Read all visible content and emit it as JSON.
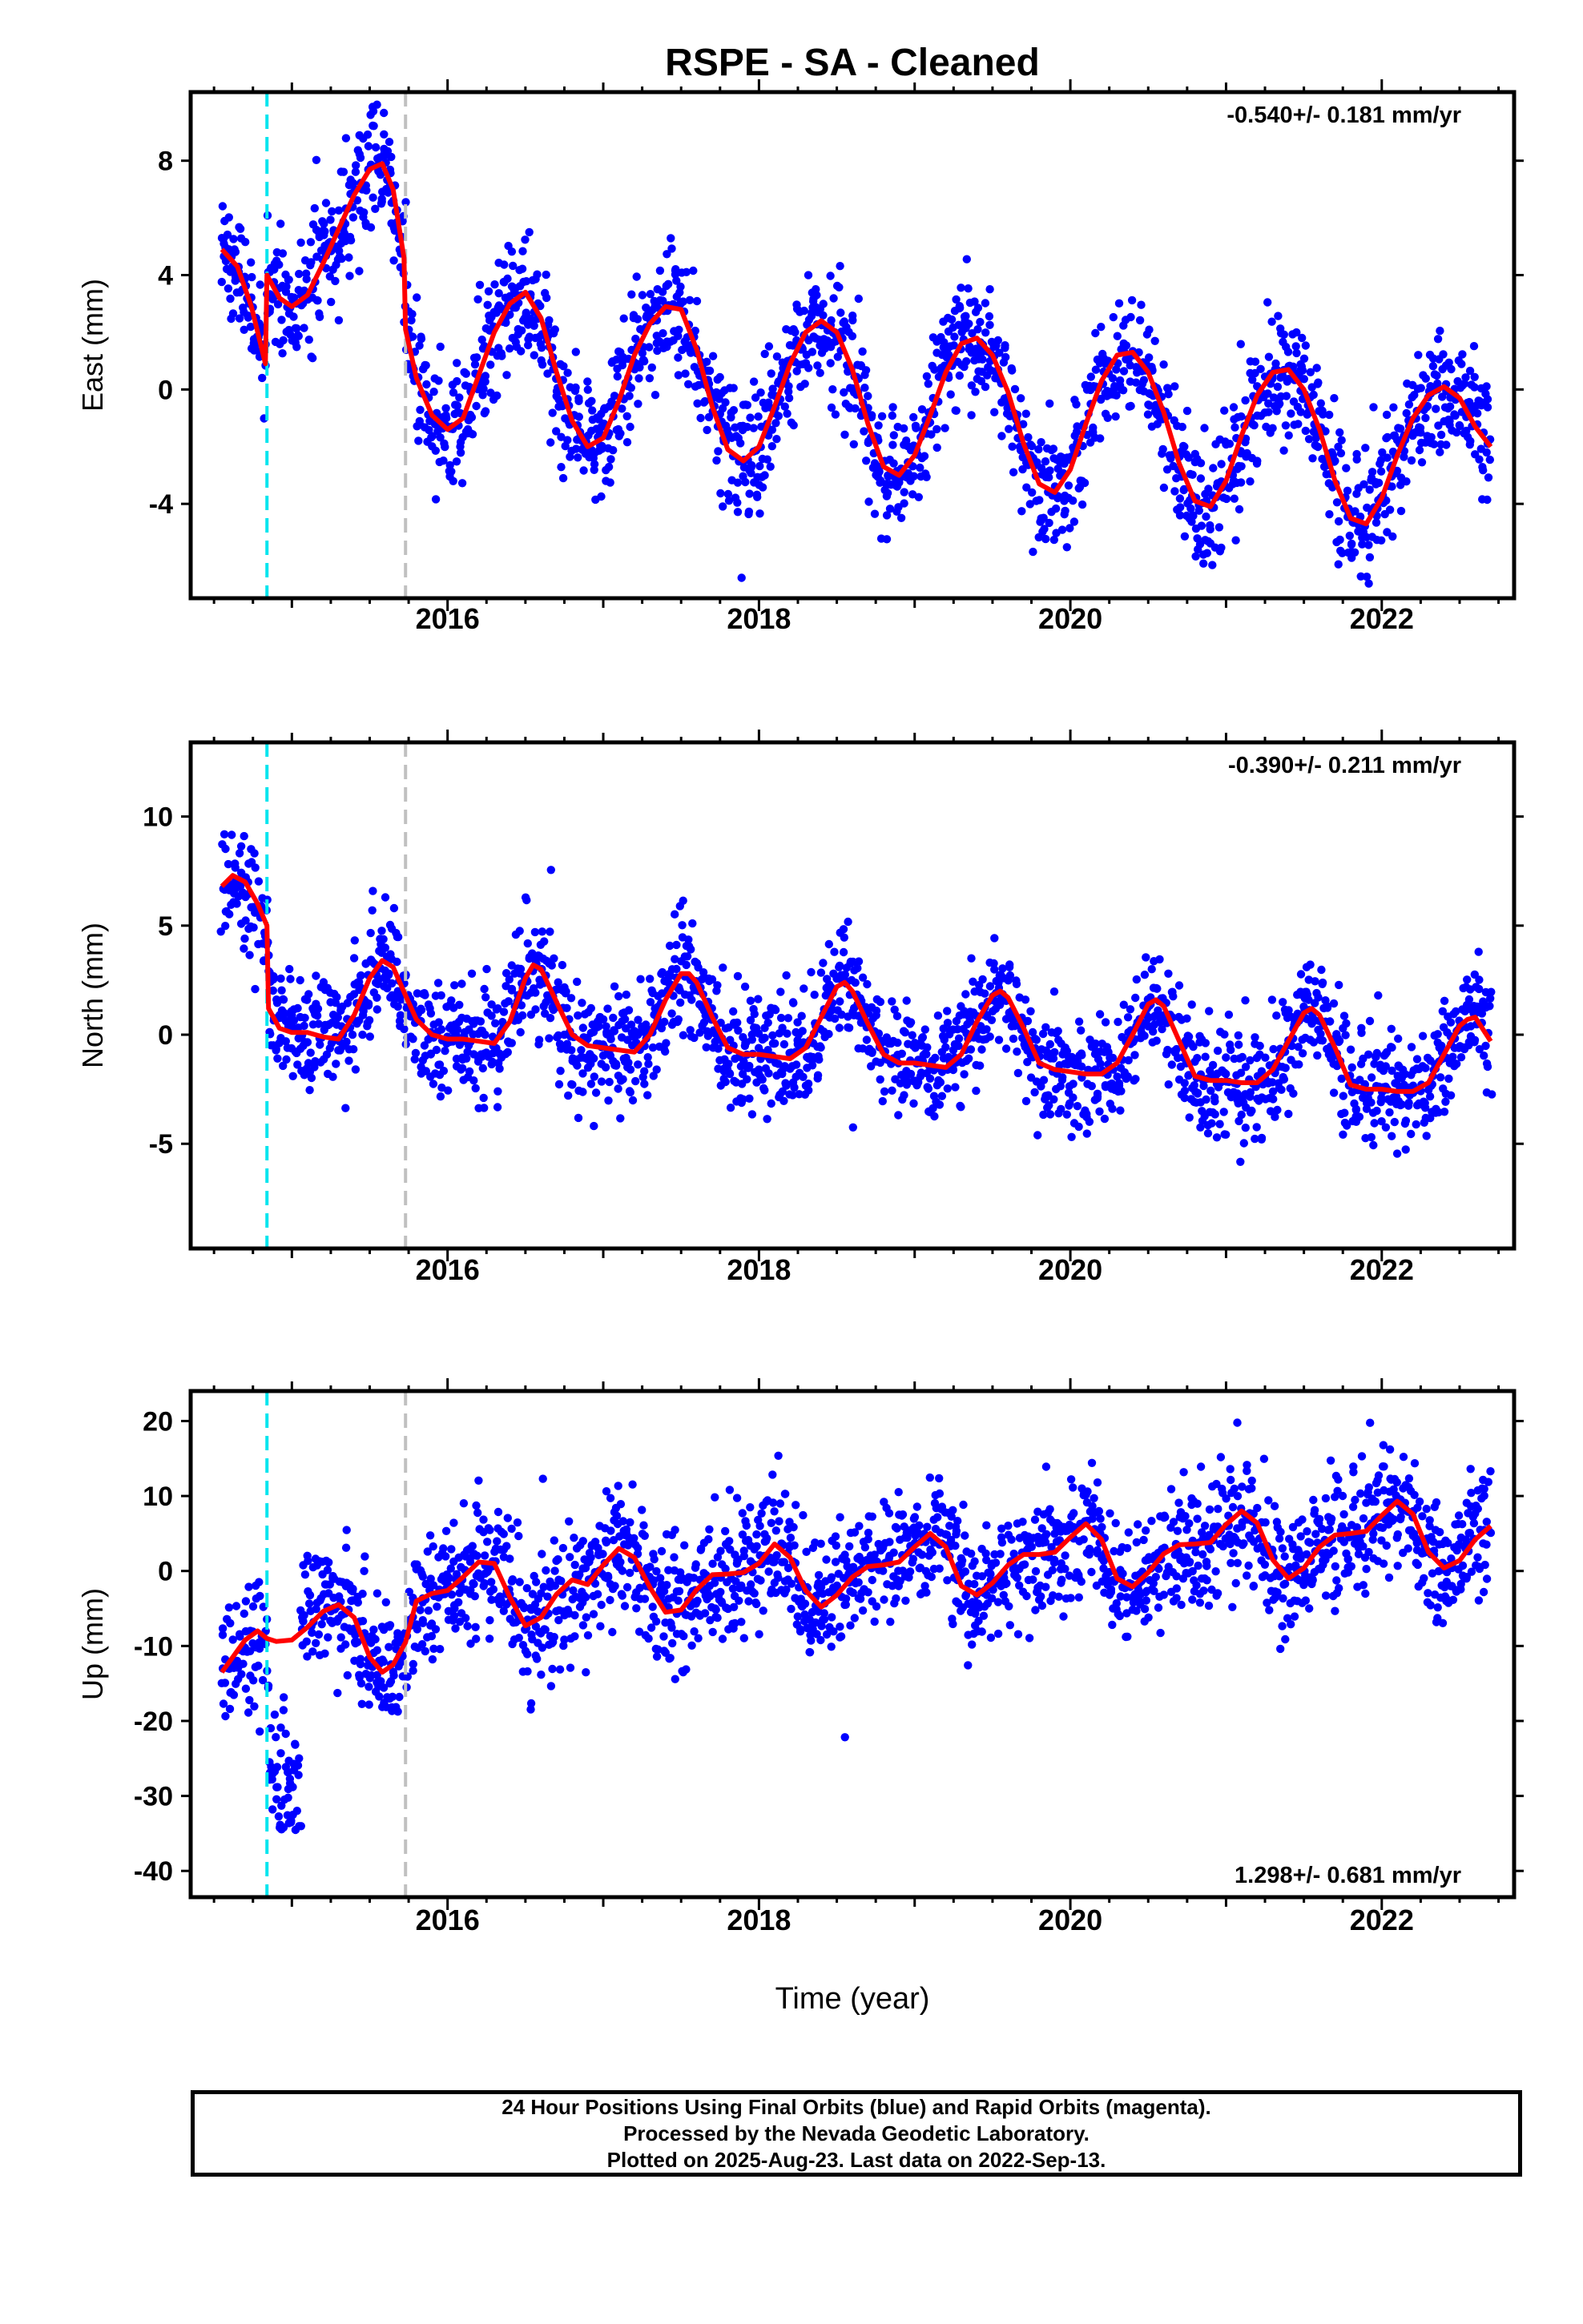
{
  "title": "RSPE  - SA - Cleaned",
  "xlabel": "Time (year)",
  "colors": {
    "points": "#0000ff",
    "model": "#ff0000",
    "offset_antenna": "#00e5ee",
    "offset_equipment": "#c0c0c0",
    "frame": "#000000"
  },
  "chart_data": [
    {
      "type": "scatter",
      "component": "east",
      "ylabel": "East (mm)",
      "rate_text": "-0.540+/- 0.181 mm/yr",
      "xlim": [
        2014.35,
        2022.85
      ],
      "ylim": [
        -7.3,
        10.4
      ],
      "yticks": [
        -4,
        0,
        4,
        8
      ],
      "xticks": [
        2016,
        2018,
        2020,
        2022
      ],
      "x_start": 2014.55,
      "x_end": 2022.7,
      "rate": -0.54,
      "noise": 1.1,
      "offset_lines": [
        2014.84,
        2015.73
      ],
      "model": {
        "x": [
          2014.55,
          2014.65,
          2014.74,
          2014.83,
          2014.84,
          2014.92,
          2015.0,
          2015.1,
          2015.2,
          2015.3,
          2015.4,
          2015.5,
          2015.58,
          2015.65,
          2015.72,
          2015.73,
          2015.8,
          2015.9,
          2016.0,
          2016.1,
          2016.2,
          2016.3,
          2016.4,
          2016.5,
          2016.6,
          2016.7,
          2016.8,
          2016.9,
          2017.0,
          2017.1,
          2017.2,
          2017.3,
          2017.4,
          2017.5,
          2017.6,
          2017.7,
          2017.8,
          2017.9,
          2018.0,
          2018.1,
          2018.2,
          2018.3,
          2018.4,
          2018.5,
          2018.6,
          2018.7,
          2018.8,
          2018.9,
          2019.0,
          2019.1,
          2019.2,
          2019.3,
          2019.4,
          2019.5,
          2019.6,
          2019.7,
          2019.8,
          2019.9,
          2020.0,
          2020.1,
          2020.2,
          2020.3,
          2020.4,
          2020.5,
          2020.6,
          2020.7,
          2020.8,
          2020.9,
          2021.0,
          2021.1,
          2021.2,
          2021.3,
          2021.4,
          2021.5,
          2021.6,
          2021.7,
          2021.8,
          2021.9,
          2022.0,
          2022.1,
          2022.2,
          2022.3,
          2022.4,
          2022.5,
          2022.6,
          2022.7
        ],
        "y": [
          4.9,
          4.3,
          2.9,
          0.9,
          4.0,
          3.2,
          2.9,
          3.3,
          4.4,
          5.6,
          6.8,
          7.7,
          7.9,
          7.0,
          4.6,
          2.1,
          0.4,
          -0.9,
          -1.4,
          -1.0,
          0.5,
          2.0,
          3.0,
          3.4,
          2.5,
          0.6,
          -1.1,
          -2.0,
          -1.7,
          -0.4,
          1.2,
          2.3,
          2.9,
          2.8,
          1.4,
          -0.6,
          -2.1,
          -2.5,
          -2.0,
          -0.6,
          0.9,
          2.0,
          2.4,
          2.0,
          0.7,
          -1.2,
          -2.7,
          -3.0,
          -2.3,
          -0.9,
          0.6,
          1.6,
          1.8,
          1.2,
          -0.1,
          -1.9,
          -3.3,
          -3.6,
          -2.8,
          -1.2,
          0.3,
          1.2,
          1.3,
          0.6,
          -0.8,
          -2.6,
          -3.9,
          -4.1,
          -3.2,
          -1.6,
          -0.2,
          0.6,
          0.7,
          0.0,
          -1.4,
          -3.2,
          -4.5,
          -4.7,
          -3.8,
          -2.3,
          -1.0,
          -0.2,
          0.1,
          -0.3,
          -1.3,
          -2.0
        ]
      }
    },
    {
      "type": "scatter",
      "component": "north",
      "ylabel": "North (mm)",
      "rate_text": "-0.390+/- 0.211 mm/yr",
      "xlim": [
        2014.35,
        2022.85
      ],
      "ylim": [
        -9.8,
        13.4
      ],
      "yticks": [
        -5,
        0,
        5,
        10
      ],
      "xticks": [
        2016,
        2018,
        2020,
        2022
      ],
      "x_start": 2014.55,
      "x_end": 2022.7,
      "rate": -0.39,
      "noise": 1.3,
      "offset_lines": [
        2014.84,
        2015.73
      ],
      "model": {
        "x": [
          2014.55,
          2014.62,
          2014.7,
          2014.78,
          2014.84,
          2014.85,
          2014.92,
          2015.0,
          2015.1,
          2015.2,
          2015.3,
          2015.4,
          2015.5,
          2015.58,
          2015.65,
          2015.73,
          2015.8,
          2015.9,
          2016.0,
          2016.1,
          2016.2,
          2016.3,
          2016.4,
          2016.5,
          2016.55,
          2016.6,
          2016.7,
          2016.8,
          2016.9,
          2017.0,
          2017.1,
          2017.2,
          2017.3,
          2017.4,
          2017.5,
          2017.55,
          2017.6,
          2017.7,
          2017.8,
          2017.9,
          2018.0,
          2018.1,
          2018.2,
          2018.3,
          2018.4,
          2018.5,
          2018.55,
          2018.6,
          2018.7,
          2018.8,
          2018.9,
          2019.0,
          2019.1,
          2019.2,
          2019.3,
          2019.4,
          2019.5,
          2019.55,
          2019.6,
          2019.7,
          2019.8,
          2019.9,
          2020.0,
          2020.1,
          2020.2,
          2020.3,
          2020.4,
          2020.5,
          2020.55,
          2020.6,
          2020.7,
          2020.8,
          2020.9,
          2021.0,
          2021.1,
          2021.2,
          2021.3,
          2021.4,
          2021.5,
          2021.55,
          2021.6,
          2021.7,
          2021.8,
          2021.9,
          2022.0,
          2022.1,
          2022.2,
          2022.3,
          2022.4,
          2022.5,
          2022.55,
          2022.6,
          2022.7
        ],
        "y": [
          6.8,
          7.3,
          7.0,
          6.0,
          5.0,
          1.2,
          0.3,
          0.1,
          0.1,
          -0.1,
          -0.2,
          0.9,
          2.6,
          3.4,
          3.1,
          1.8,
          0.7,
          0.0,
          -0.2,
          -0.2,
          -0.3,
          -0.4,
          0.6,
          2.6,
          3.2,
          3.0,
          1.5,
          0.0,
          -0.5,
          -0.6,
          -0.7,
          -0.8,
          0.0,
          1.6,
          2.8,
          2.8,
          2.4,
          0.8,
          -0.6,
          -0.9,
          -0.9,
          -1.0,
          -1.1,
          -0.6,
          0.8,
          2.2,
          2.4,
          2.0,
          0.5,
          -0.9,
          -1.3,
          -1.3,
          -1.4,
          -1.5,
          -0.9,
          0.6,
          1.8,
          2.0,
          1.7,
          0.3,
          -1.3,
          -1.6,
          -1.7,
          -1.8,
          -1.8,
          -1.3,
          0.0,
          1.4,
          1.6,
          1.3,
          -0.3,
          -1.9,
          -2.1,
          -2.1,
          -2.2,
          -2.2,
          -1.6,
          -0.3,
          1.0,
          1.2,
          0.9,
          -0.6,
          -2.3,
          -2.5,
          -2.5,
          -2.6,
          -2.6,
          -2.2,
          -0.9,
          0.4,
          0.7,
          0.8,
          -0.3
        ]
      }
    },
    {
      "type": "scatter",
      "component": "up",
      "ylabel": "Up (mm)",
      "rate_text": "1.298+/- 0.681 mm/yr",
      "xlim": [
        2014.35,
        2022.85
      ],
      "ylim": [
        -43.5,
        24.0
      ],
      "yticks": [
        -40,
        -30,
        -20,
        -10,
        0,
        10,
        20
      ],
      "xticks": [
        2016,
        2018,
        2020,
        2022
      ],
      "x_start": 2014.55,
      "x_end": 2022.7,
      "rate": 1.298,
      "noise": 4.2,
      "offset_lines": [
        2014.84,
        2015.73
      ],
      "outlier_cluster": {
        "x": [
          2014.85,
          2015.06
        ],
        "y": [
          -38,
          -18
        ]
      },
      "model": {
        "x": [
          2014.55,
          2014.62,
          2014.7,
          2014.78,
          2014.84,
          2014.9,
          2015.0,
          2015.1,
          2015.2,
          2015.3,
          2015.4,
          2015.5,
          2015.58,
          2015.65,
          2015.73,
          2015.8,
          2015.9,
          2016.0,
          2016.1,
          2016.2,
          2016.3,
          2016.4,
          2016.5,
          2016.6,
          2016.7,
          2016.8,
          2016.9,
          2017.0,
          2017.1,
          2017.2,
          2017.3,
          2017.4,
          2017.5,
          2017.6,
          2017.7,
          2017.8,
          2017.9,
          2018.0,
          2018.1,
          2018.2,
          2018.3,
          2018.4,
          2018.5,
          2018.6,
          2018.7,
          2018.8,
          2018.9,
          2019.0,
          2019.1,
          2019.2,
          2019.3,
          2019.4,
          2019.5,
          2019.6,
          2019.7,
          2019.8,
          2019.9,
          2020.0,
          2020.1,
          2020.2,
          2020.3,
          2020.4,
          2020.5,
          2020.6,
          2020.7,
          2020.8,
          2020.9,
          2021.0,
          2021.1,
          2021.2,
          2021.3,
          2021.4,
          2021.5,
          2021.6,
          2021.7,
          2021.8,
          2021.9,
          2022.0,
          2022.1,
          2022.2,
          2022.3,
          2022.4,
          2022.5,
          2022.6,
          2022.7
        ],
        "y": [
          -13.5,
          -11.5,
          -9.2,
          -8.0,
          -9.0,
          -9.4,
          -9.2,
          -7.5,
          -5.4,
          -4.5,
          -6.2,
          -11.5,
          -13.5,
          -12.5,
          -9.5,
          -4.0,
          -3.0,
          -2.6,
          -0.8,
          1.2,
          1.0,
          -3.5,
          -7.3,
          -6.2,
          -3.1,
          -1.2,
          -1.8,
          0.8,
          3.0,
          1.8,
          -2.2,
          -5.5,
          -5.2,
          -2.5,
          -0.5,
          -0.4,
          -0.2,
          1.0,
          3.6,
          1.8,
          -2.6,
          -4.8,
          -3.2,
          -0.8,
          0.6,
          0.8,
          1.2,
          3.2,
          5.0,
          3.2,
          -2.0,
          -3.2,
          -1.6,
          0.8,
          2.2,
          2.2,
          2.5,
          4.5,
          6.3,
          4.2,
          -1.0,
          -2.1,
          -0.2,
          2.3,
          3.5,
          3.6,
          3.8,
          6.2,
          8.0,
          6.4,
          1.5,
          -1.0,
          0.4,
          3.2,
          4.8,
          5.0,
          5.3,
          7.4,
          9.3,
          7.6,
          2.5,
          0.4,
          1.4,
          4.2,
          6.0
        ]
      }
    }
  ],
  "footer": {
    "line1": "24 Hour Positions Using Final Orbits (blue) and Rapid Orbits (magenta).",
    "line2": "Processed by the Nevada Geodetic Laboratory.",
    "line3": "Plotted on 2025-Aug-23. Last data on 2022-Sep-13."
  }
}
